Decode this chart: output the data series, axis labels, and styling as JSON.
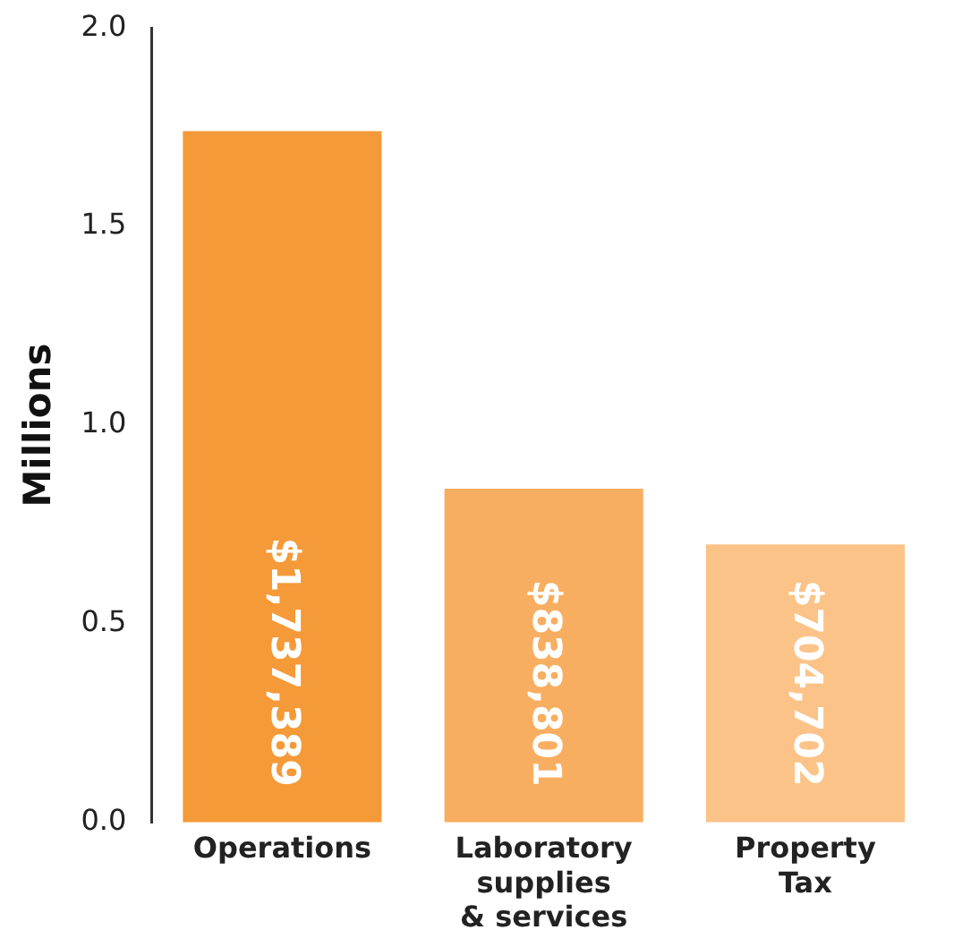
{
  "chart_data": {
    "type": "bar",
    "ylabel": "Millions",
    "categories": [
      "Operations",
      "Laboratory\nsupplies\n& services",
      "Property\nTax"
    ],
    "values": [
      1.74,
      0.84,
      0.7
    ],
    "colors": [
      "#f59a38",
      "#f8ae60",
      "#fbc388"
    ],
    "annotations": [
      "$1,737,389",
      "$838,801",
      "$704,702"
    ],
    "ylim": [
      0,
      2
    ],
    "yticks": [
      {
        "value": 0,
        "label": "0.0"
      },
      0.5,
      {
        "value": 1,
        "label": "1.0"
      },
      1.5,
      {
        "value": 2,
        "label": "2.0"
      }
    ],
    "grid": false,
    "legend": false
  }
}
